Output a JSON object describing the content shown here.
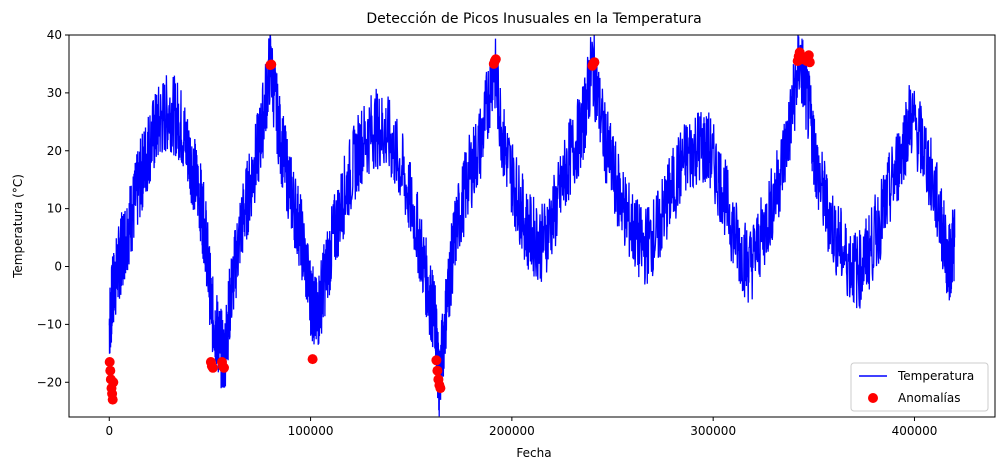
{
  "chart_data": {
    "type": "line",
    "title": "Detección de Picos Inusuales en la Temperatura",
    "xlabel": "Fecha",
    "ylabel": "Temperatura (°C)",
    "xlim": [
      -20000,
      440000
    ],
    "ylim": [
      -26,
      40
    ],
    "xticks": [
      0,
      100000,
      200000,
      300000,
      400000
    ],
    "yticks": [
      -20,
      -10,
      0,
      10,
      20,
      30,
      40
    ],
    "grid": false,
    "legend_position": "lower-right",
    "colors": {
      "line": "#0000ff",
      "anomaly": "#ff0000"
    },
    "series": [
      {
        "name": "Temperatura",
        "kind": "line",
        "x": [
          0,
          2000,
          5000,
          8000,
          12000,
          16000,
          20000,
          25000,
          30000,
          35000,
          40000,
          45000,
          48000,
          51000,
          54000,
          57000,
          60000,
          65000,
          70000,
          75000,
          80000,
          85000,
          90000,
          95000,
          100000,
          103000,
          107000,
          112000,
          118000,
          125000,
          132000,
          138000,
          145000,
          152000,
          158000,
          162000,
          164000,
          168000,
          172000,
          178000,
          185000,
          191000,
          196000,
          202000,
          208000,
          215000,
          222000,
          228000,
          235000,
          240000,
          246000,
          252000,
          258000,
          265000,
          272000,
          278000,
          285000,
          292000,
          298000,
          305000,
          312000,
          318000,
          325000,
          332000,
          338000,
          343000,
          348000,
          352000,
          358000,
          365000,
          372000,
          378000,
          385000,
          392000,
          398000,
          405000,
          412000,
          417000,
          420000
        ],
        "y": [
          -10,
          -4,
          1,
          5,
          10,
          16,
          21,
          25,
          27,
          25,
          19,
          12,
          5,
          -8,
          -12,
          -16,
          -6,
          6,
          14,
          22,
          35,
          22,
          13,
          6,
          -5,
          -9,
          -2,
          6,
          14,
          21,
          24,
          23,
          17,
          8,
          -3,
          -10,
          -20,
          -5,
          6,
          15,
          22,
          35,
          21,
          13,
          6,
          4,
          10,
          18,
          24,
          35,
          22,
          14,
          8,
          3,
          6,
          12,
          18,
          21,
          20,
          13,
          4,
          0,
          6,
          14,
          24,
          36,
          26,
          16,
          8,
          2,
          -1,
          3,
          10,
          18,
          26,
          20,
          10,
          0,
          5
        ]
      },
      {
        "name": "Anomalías",
        "kind": "scatter",
        "x": [
          200,
          500,
          800,
          1100,
          1400,
          1700,
          2000,
          50500,
          51000,
          51500,
          56000,
          56500,
          57000,
          80000,
          80500,
          101000,
          162500,
          163000,
          163500,
          164000,
          164500,
          191000,
          191500,
          192000,
          240000,
          240500,
          241000,
          342000,
          342500,
          343000,
          343500,
          344000,
          346500,
          347000,
          347500,
          348000
        ],
        "y": [
          -16.5,
          -18,
          -19.5,
          -21,
          -22,
          -23,
          -20,
          -16.5,
          -17.2,
          -17.5,
          -16.5,
          -17.3,
          -17.5,
          34.8,
          34.9,
          -16,
          -16.2,
          -18,
          -19.5,
          -20.5,
          -21,
          35,
          35.5,
          35.8,
          34.7,
          35.1,
          35.3,
          35.5,
          36.3,
          37,
          36.5,
          35.8,
          35.5,
          36.2,
          36.5,
          35.3
        ]
      }
    ]
  }
}
